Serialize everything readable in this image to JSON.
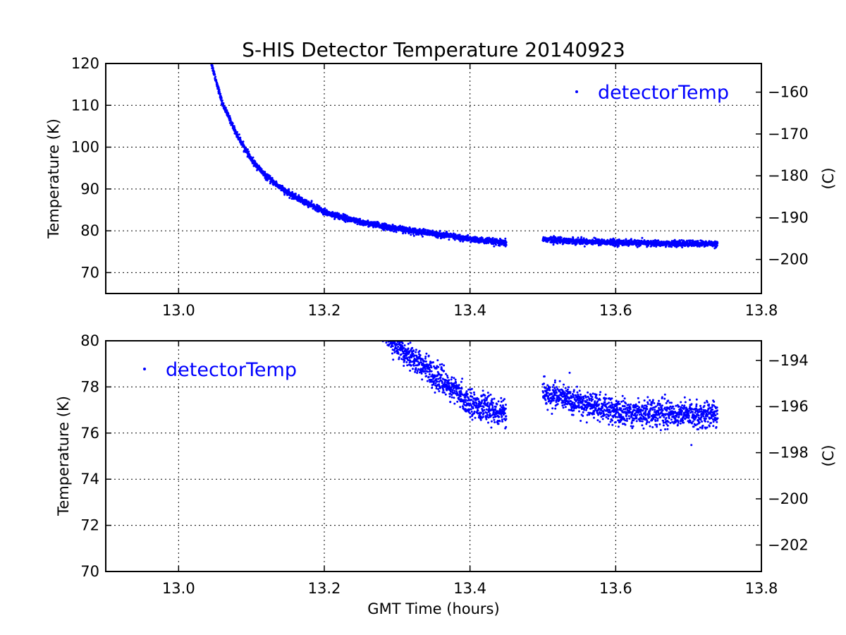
{
  "title": "S-HIS Detector Temperature 20140923",
  "colors": {
    "series": "#0000ff",
    "axis": "#000000",
    "background": "#ffffff"
  },
  "chart_data": [
    {
      "type": "scatter",
      "title": "S-HIS Detector Temperature 20140923",
      "xlabel": "",
      "ylabel": "Temperature (K)",
      "ylabel_right": "(C)",
      "xlim": [
        12.9,
        13.8
      ],
      "ylim": [
        65,
        120
      ],
      "ylim_right": [
        -208.15,
        -153.15
      ],
      "x_ticks": [
        "13.0",
        "13.2",
        "13.4",
        "13.6",
        "13.8"
      ],
      "y_ticks": [
        "70",
        "80",
        "90",
        "100",
        "110",
        "120"
      ],
      "y_ticks_right": [
        "−200",
        "−190",
        "−180",
        "−170",
        "−160"
      ],
      "grid": true,
      "legend": {
        "position": "top-right",
        "entries": [
          "detectorTemp"
        ]
      },
      "series": [
        {
          "name": "detectorTemp",
          "x": [
            13.045,
            13.06,
            13.08,
            13.1,
            13.12,
            13.15,
            13.2,
            13.25,
            13.3,
            13.35,
            13.4,
            13.45,
            13.5,
            13.55,
            13.6,
            13.65,
            13.7,
            13.74
          ],
          "y": [
            120.0,
            110.5,
            103.0,
            97.0,
            93.0,
            89.0,
            84.5,
            82.0,
            80.5,
            79.3,
            78.0,
            77.0,
            78.0,
            77.5,
            77.2,
            77.0,
            76.9,
            76.9
          ],
          "noise": 0.7
        }
      ]
    },
    {
      "type": "scatter",
      "title": "",
      "xlabel": "GMT Time (hours)",
      "ylabel": "Temperature (K)",
      "ylabel_right": "(C)",
      "xlim": [
        12.9,
        13.8
      ],
      "ylim": [
        70,
        80
      ],
      "ylim_right": [
        -203.15,
        -193.15
      ],
      "x_ticks": [
        "13.0",
        "13.2",
        "13.4",
        "13.6",
        "13.8"
      ],
      "y_ticks": [
        "70",
        "72",
        "74",
        "76",
        "78",
        "80"
      ],
      "y_ticks_right": [
        "−202",
        "−200",
        "−198",
        "−196",
        "−194"
      ],
      "grid": true,
      "legend": {
        "position": "top-left",
        "entries": [
          "detectorTemp"
        ]
      },
      "series": [
        {
          "name": "detectorTemp",
          "x": [
            13.28,
            13.3,
            13.32,
            13.34,
            13.36,
            13.38,
            13.4,
            13.42,
            13.44,
            13.45,
            13.5,
            13.52,
            13.55,
            13.58,
            13.6,
            13.65,
            13.7,
            13.74
          ],
          "y": [
            80.5,
            79.8,
            79.3,
            78.8,
            78.3,
            77.8,
            77.3,
            77.1,
            76.9,
            76.8,
            77.7,
            77.6,
            77.3,
            77.1,
            76.9,
            76.9,
            76.8,
            76.8
          ],
          "noise": 0.55
        }
      ]
    }
  ]
}
